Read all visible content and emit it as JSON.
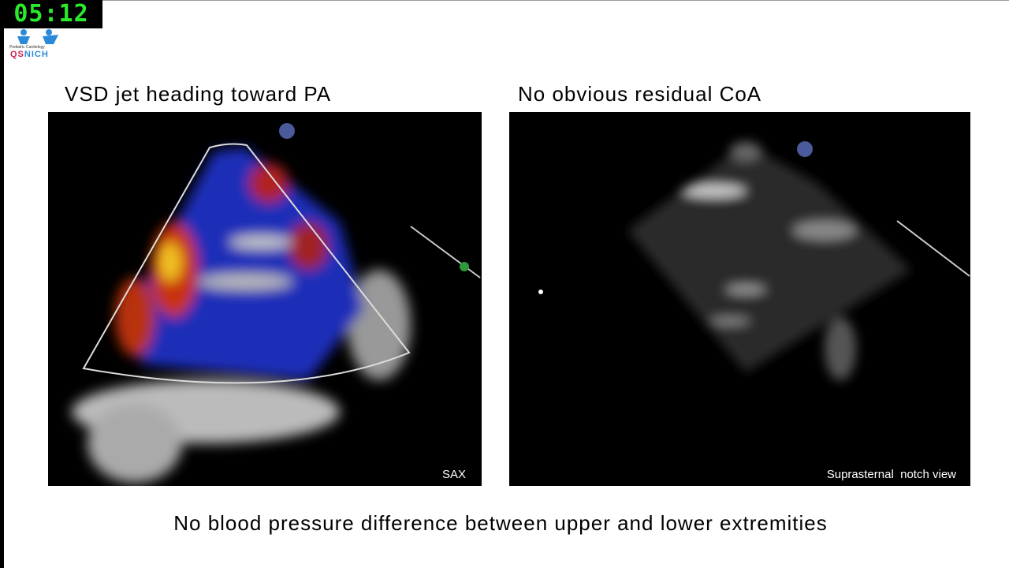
{
  "timer": "05:12",
  "logo": {
    "subtitle": "Pediatric Cardiology",
    "name": "QSNICH"
  },
  "left_panel": {
    "title": "VSD jet heading toward PA",
    "view_label": "SAX"
  },
  "right_panel": {
    "title": "No obvious residual CoA",
    "view_label": "Suprasternal  notch view"
  },
  "caption": "No blood pressure difference between upper and lower extremities",
  "colors": {
    "timer": "#2bea2b",
    "logo_blue": "#2a8ad8",
    "logo_red": "#d0204a"
  }
}
